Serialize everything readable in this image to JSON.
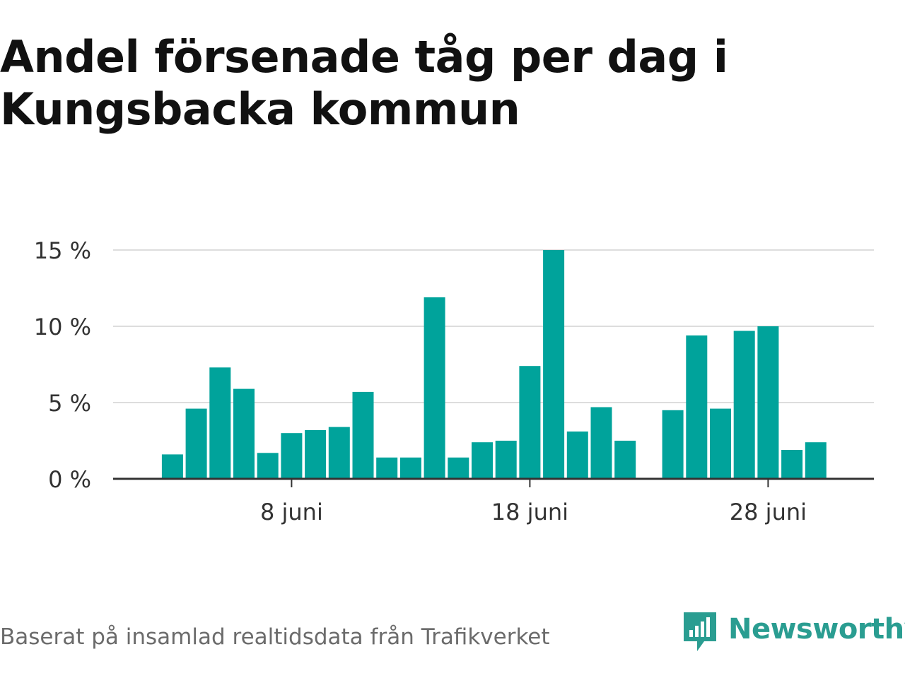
{
  "title": "Andel försenade tåg per dag i Kungsbacka kommun",
  "source": "Baserat på insamlad realtidsdata från Trafikverket",
  "brand": {
    "name": "Newsworthy",
    "logo_icon": "newsworthy-bar-chart-icon",
    "color": "#2a9d91"
  },
  "colors": {
    "bar": "#00a39b",
    "grid": "#dddddd",
    "axis": "#333333",
    "tick_text": "#333333"
  },
  "chart_data": {
    "type": "bar",
    "x": [
      "1 juni",
      "2 juni",
      "3 juni",
      "4 juni",
      "5 juni",
      "6 juni",
      "7 juni",
      "8 juni",
      "9 juni",
      "10 juni",
      "11 juni",
      "12 juni",
      "13 juni",
      "14 juni",
      "15 juni",
      "16 juni",
      "17 juni",
      "18 juni",
      "19 juni",
      "20 juni",
      "21 juni",
      "22 juni",
      "23 juni",
      "24 juni",
      "25 juni",
      "26 juni",
      "27 juni",
      "28 juni",
      "29 juni",
      "30 juni"
    ],
    "values": [
      null,
      null,
      1.6,
      4.6,
      7.3,
      5.9,
      1.7,
      3.0,
      3.2,
      3.4,
      5.7,
      1.4,
      1.4,
      11.9,
      1.4,
      2.4,
      2.5,
      7.4,
      15.0,
      3.1,
      4.7,
      2.5,
      null,
      4.5,
      9.4,
      4.6,
      9.7,
      10.0,
      1.9,
      2.4
    ],
    "x_tick_labels": [
      "8 juni",
      "18 juni",
      "28 juni"
    ],
    "y_ticks": [
      0,
      5,
      10,
      15
    ],
    "y_tick_labels": [
      "0 %",
      "5 %",
      "10 %",
      "15 %"
    ],
    "ylim": [
      0,
      15
    ],
    "xlabel": "",
    "ylabel": "",
    "grid": true
  }
}
